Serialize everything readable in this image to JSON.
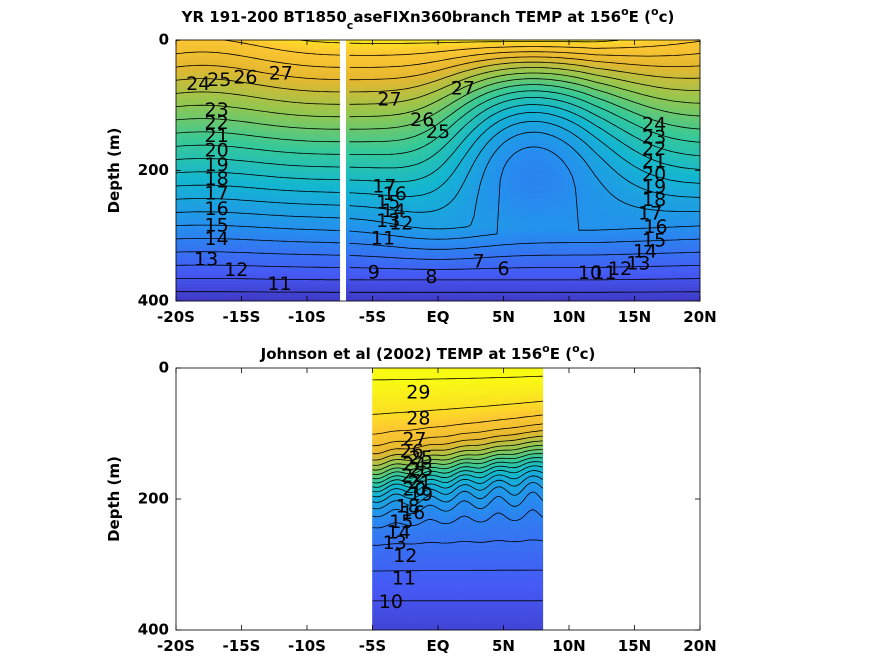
{
  "chart_data": [
    {
      "type": "heatmap",
      "title": "YR 191-200 BT1850",
      "title_sub": "c",
      "title_rest": "aseFIXn360branch TEMP at 156",
      "title_sup": "o",
      "title_end": "E (",
      "title_unit_sup": "o",
      "title_unit_end": "c)",
      "ylabel": "Depth (m)",
      "xlim": [
        -20,
        20
      ],
      "ylim": [
        0,
        400
      ],
      "y_reversed": true,
      "x_ticks": [
        -20,
        -15,
        -10,
        -5,
        0,
        5,
        10,
        15,
        20
      ],
      "x_tick_labels": [
        "-20S",
        "-15S",
        "-10S",
        "-5S",
        "EQ",
        "5N",
        "10N",
        "15N",
        "20N"
      ],
      "y_ticks": [
        0,
        200,
        400
      ],
      "y_tick_labels": [
        "0",
        "200",
        "400"
      ],
      "data_extent_x": [
        -20,
        20
      ],
      "gap_x": [
        -7.5,
        -6.9
      ],
      "colormap": "parula",
      "color_range": [
        6,
        29
      ],
      "contour_interval": 1,
      "contour_labels": [
        {
          "t": "24",
          "x": -18.3,
          "y": 68
        },
        {
          "t": "25",
          "x": -16.7,
          "y": 62
        },
        {
          "t": "26",
          "x": -14.7,
          "y": 58
        },
        {
          "t": "27",
          "x": -12.0,
          "y": 52
        },
        {
          "t": "23",
          "x": -16.9,
          "y": 108
        },
        {
          "t": "22",
          "x": -16.9,
          "y": 128
        },
        {
          "t": "21",
          "x": -16.9,
          "y": 148
        },
        {
          "t": "20",
          "x": -16.9,
          "y": 170
        },
        {
          "t": "19",
          "x": -16.9,
          "y": 192
        },
        {
          "t": "18",
          "x": -16.9,
          "y": 214
        },
        {
          "t": "17",
          "x": -16.9,
          "y": 236
        },
        {
          "t": "16",
          "x": -16.9,
          "y": 260
        },
        {
          "t": "15",
          "x": -16.9,
          "y": 285
        },
        {
          "t": "14",
          "x": -16.9,
          "y": 306
        },
        {
          "t": "13",
          "x": -17.7,
          "y": 337
        },
        {
          "t": "12",
          "x": -15.4,
          "y": 353
        },
        {
          "t": "11",
          "x": -12.1,
          "y": 375
        },
        {
          "t": "27",
          "x": -3.7,
          "y": 92
        },
        {
          "t": "27",
          "x": 1.9,
          "y": 75
        },
        {
          "t": "26",
          "x": -1.2,
          "y": 123
        },
        {
          "t": "25",
          "x": 0.0,
          "y": 142
        },
        {
          "t": "24",
          "x": 16.5,
          "y": 130
        },
        {
          "t": "23",
          "x": 16.5,
          "y": 150
        },
        {
          "t": "22",
          "x": 16.5,
          "y": 168
        },
        {
          "t": "21",
          "x": 16.5,
          "y": 187
        },
        {
          "t": "20",
          "x": 16.5,
          "y": 207
        },
        {
          "t": "19",
          "x": 16.5,
          "y": 226
        },
        {
          "t": "18",
          "x": 16.5,
          "y": 246
        },
        {
          "t": "17",
          "x": 16.2,
          "y": 267
        },
        {
          "t": "16",
          "x": 16.6,
          "y": 287
        },
        {
          "t": "15",
          "x": 16.5,
          "y": 308
        },
        {
          "t": "14",
          "x": 15.8,
          "y": 325
        },
        {
          "t": "13",
          "x": 15.3,
          "y": 343
        },
        {
          "t": "12",
          "x": 13.9,
          "y": 352
        },
        {
          "t": "11",
          "x": 12.7,
          "y": 358
        },
        {
          "t": "10",
          "x": 11.6,
          "y": 358
        },
        {
          "t": "9",
          "x": -4.9,
          "y": 357
        },
        {
          "t": "8",
          "x": -0.5,
          "y": 364
        },
        {
          "t": "7",
          "x": 3.1,
          "y": 340
        },
        {
          "t": "6",
          "x": 5.0,
          "y": 352
        },
        {
          "t": "17",
          "x": -4.1,
          "y": 225
        },
        {
          "t": "16",
          "x": -3.3,
          "y": 237
        },
        {
          "t": "15",
          "x": -3.8,
          "y": 250
        },
        {
          "t": "14",
          "x": -3.4,
          "y": 263
        },
        {
          "t": "13",
          "x": -3.8,
          "y": 278
        },
        {
          "t": "12",
          "x": -2.8,
          "y": 282
        },
        {
          "t": "11",
          "x": -4.2,
          "y": 305
        }
      ]
    },
    {
      "type": "heatmap",
      "title": "Johnson et al (2002) TEMP at 156",
      "title_sup": "o",
      "title_end": "E (",
      "title_unit_sup": "o",
      "title_unit_end": "c)",
      "ylabel": "Depth (m)",
      "xlim": [
        -20,
        20
      ],
      "ylim": [
        0,
        400
      ],
      "y_reversed": true,
      "x_ticks": [
        -20,
        -15,
        -10,
        -5,
        0,
        5,
        10,
        15,
        20
      ],
      "x_tick_labels": [
        "-20S",
        "-15S",
        "-10S",
        "-5S",
        "EQ",
        "5N",
        "10N",
        "15N",
        "20N"
      ],
      "y_ticks": [
        0,
        200,
        400
      ],
      "y_tick_labels": [
        "0",
        "200",
        "400"
      ],
      "data_extent_x": [
        -5,
        8
      ],
      "colormap": "parula",
      "color_range": [
        6,
        29
      ],
      "contour_interval": 1,
      "contour_labels": [
        {
          "t": "29",
          "x": -1.5,
          "y": 38
        },
        {
          "t": "28",
          "x": -1.5,
          "y": 78
        },
        {
          "t": "27",
          "x": -1.8,
          "y": 110
        },
        {
          "t": "26",
          "x": -2.0,
          "y": 128
        },
        {
          "t": "25",
          "x": -1.3,
          "y": 138
        },
        {
          "t": "24",
          "x": -1.8,
          "y": 148
        },
        {
          "t": "23",
          "x": -1.3,
          "y": 156
        },
        {
          "t": "22",
          "x": -1.9,
          "y": 166
        },
        {
          "t": "21",
          "x": -1.4,
          "y": 176
        },
        {
          "t": "20",
          "x": -1.8,
          "y": 186
        },
        {
          "t": "19",
          "x": -1.3,
          "y": 194
        },
        {
          "t": "18",
          "x": -2.3,
          "y": 212
        },
        {
          "t": "16",
          "x": -1.9,
          "y": 222
        },
        {
          "t": "15",
          "x": -2.8,
          "y": 236
        },
        {
          "t": "14",
          "x": -3.0,
          "y": 252
        },
        {
          "t": "13",
          "x": -3.3,
          "y": 268
        },
        {
          "t": "12",
          "x": -2.5,
          "y": 288
        },
        {
          "t": "11",
          "x": -2.6,
          "y": 322
        },
        {
          "t": "10",
          "x": -3.6,
          "y": 358
        }
      ]
    }
  ]
}
